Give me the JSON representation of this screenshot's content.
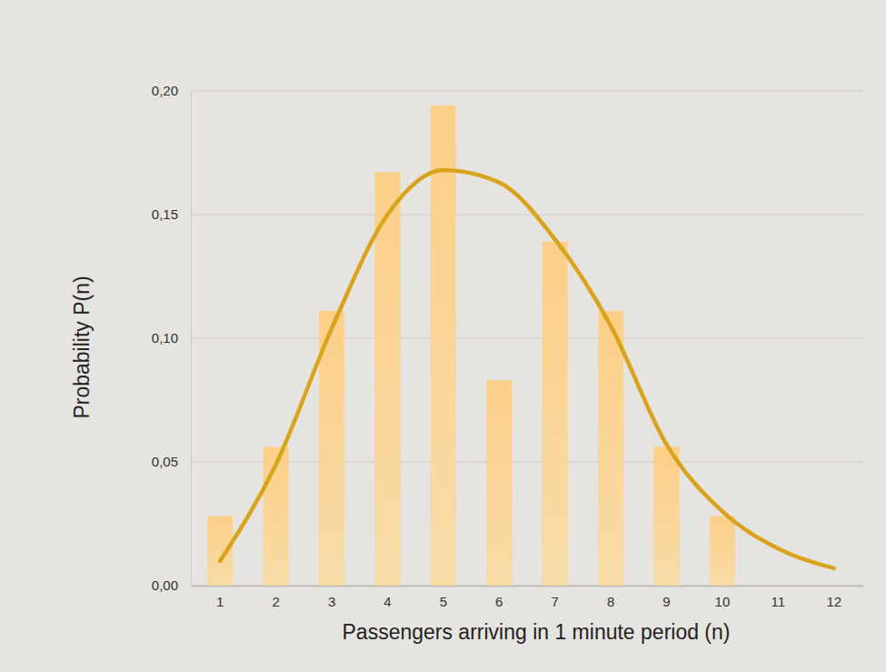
{
  "chart_data": {
    "type": "bar",
    "x_label": "Passengers arriving in 1 minute period (n)",
    "y_label": "Probability P(n)",
    "categories": [
      "1",
      "2",
      "3",
      "4",
      "5",
      "6",
      "7",
      "8",
      "9",
      "10",
      "11",
      "12"
    ],
    "series": [
      {
        "type": "bar",
        "color": "#fbd38f",
        "values": [
          0.028,
          0.056,
          0.111,
          0.167,
          0.194,
          0.083,
          0.139,
          0.111,
          0.056,
          0.028,
          null,
          null
        ]
      },
      {
        "type": "line",
        "color": "#d9a31c",
        "values": [
          0.01,
          0.049,
          0.104,
          0.15,
          0.168,
          0.163,
          0.14,
          0.105,
          0.057,
          0.03,
          0.015,
          0.007
        ]
      }
    ],
    "ylim": [
      0,
      0.2
    ],
    "yticks": [
      {
        "value": 0,
        "label": "0,00"
      },
      {
        "value": 0.05,
        "label": "0,05"
      },
      {
        "value": 0.1,
        "label": "0,10"
      },
      {
        "value": 0.15,
        "label": "0,15"
      },
      {
        "value": 0.2,
        "label": "0,20"
      }
    ],
    "grid": true
  }
}
